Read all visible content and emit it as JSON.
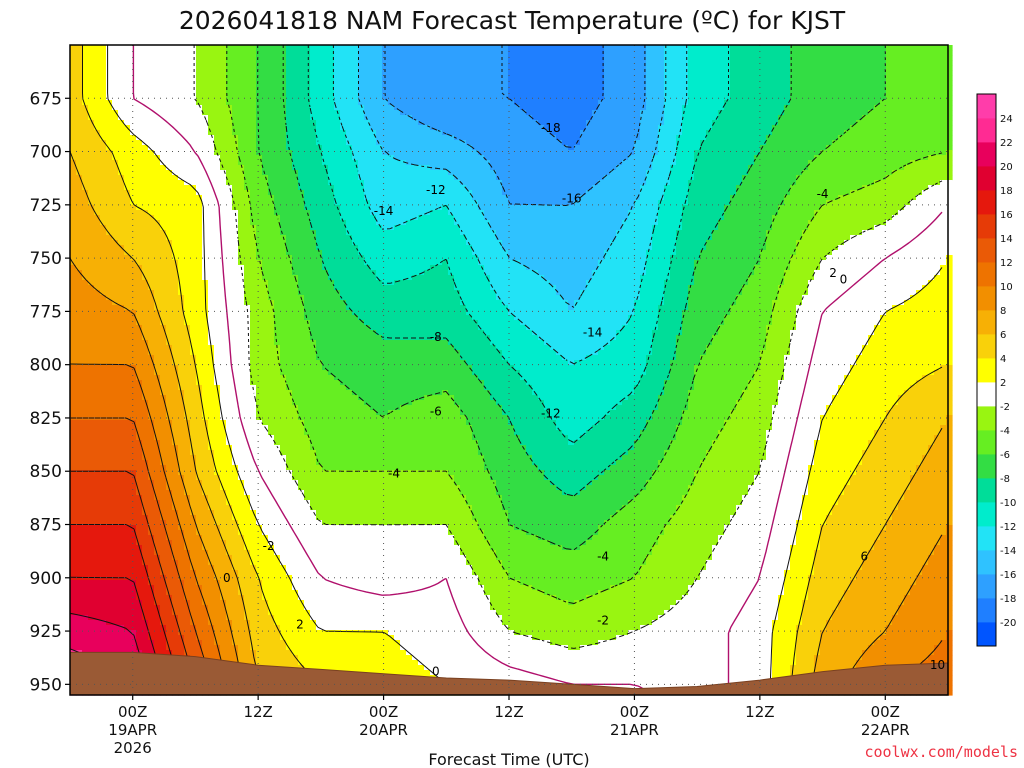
{
  "chart_data": {
    "type": "heatmap",
    "title": "2026041818 NAM Forecast Temperature (ºC) for KJST",
    "xlabel": "Forecast Time (UTC)",
    "ylabel": "",
    "ylim": [
      955,
      650
    ],
    "y_ticks": [
      675,
      700,
      725,
      750,
      775,
      800,
      825,
      850,
      875,
      900,
      925,
      950
    ],
    "x_ticks": [
      {
        "lines": [
          "00Z",
          "19APR",
          "2026"
        ],
        "hour": 6
      },
      {
        "lines": [
          "12Z"
        ],
        "hour": 18
      },
      {
        "lines": [
          "00Z",
          "20APR"
        ],
        "hour": 30
      },
      {
        "lines": [
          "12Z"
        ],
        "hour": 42
      },
      {
        "lines": [
          "00Z",
          "21APR"
        ],
        "hour": 54
      },
      {
        "lines": [
          "12Z"
        ],
        "hour": 66
      },
      {
        "lines": [
          "00Z",
          "22APR"
        ],
        "hour": 78
      }
    ],
    "xlim_hours": [
      0,
      84
    ],
    "colorbar": {
      "levels": [
        -20,
        -18,
        -16,
        -14,
        -12,
        -10,
        -8,
        -6,
        -4,
        -2,
        2,
        4,
        6,
        8,
        10,
        12,
        14,
        16,
        18,
        20,
        22,
        24
      ],
      "colors": [
        "#0055ff",
        "#1f7fff",
        "#2ea0ff",
        "#2fc2ff",
        "#22e3f6",
        "#00eccc",
        "#00dd99",
        "#33dd44",
        "#66ee22",
        "#99f511",
        "#ffffff",
        "#ffff00",
        "#f9d10a",
        "#f7b005",
        "#f28f00",
        "#ee7300",
        "#ea5a06",
        "#e63b07",
        "#e5180d",
        "#e00030",
        "#e8005c",
        "#ff2b93",
        "#ff3daa"
      ]
    },
    "series": [
      {
        "hour": 0,
        "t": [
          5,
          6,
          7,
          8,
          9,
          10,
          12,
          14,
          16,
          18,
          21,
          24
        ]
      },
      {
        "hour": 6,
        "t": [
          0,
          3,
          4,
          6,
          8,
          10,
          12,
          14,
          16,
          18,
          20,
          22
        ]
      },
      {
        "hour": 12,
        "t": [
          -2,
          0,
          3,
          3,
          3,
          4,
          5,
          6,
          8,
          10,
          12,
          14
        ]
      },
      {
        "hour": 18,
        "t": [
          -6,
          -6,
          -5,
          -4,
          -3,
          -3,
          -2,
          0,
          2,
          4,
          5,
          6
        ]
      },
      {
        "hour": 24,
        "t": [
          -11,
          -10,
          -9,
          -8,
          -7,
          -6,
          -5,
          -4,
          -2,
          0,
          2,
          4
        ]
      },
      {
        "hour": 30,
        "t": [
          -16,
          -14,
          -13,
          -11,
          -9,
          -7,
          -6,
          -4,
          -2,
          -1,
          2,
          3
        ]
      },
      {
        "hour": 36,
        "t": [
          -18,
          -15,
          -12,
          -10,
          -9,
          -7,
          -5,
          -4,
          -2,
          0,
          1,
          2
        ]
      },
      {
        "hour": 42,
        "t": [
          -18,
          -17,
          -16,
          -14,
          -12,
          -10,
          -8,
          -7,
          -6,
          -4,
          -2,
          1
        ]
      },
      {
        "hour": 48,
        "t": [
          -19,
          -18,
          -16,
          -15,
          -14,
          -12,
          -11,
          -9,
          -7,
          -5,
          -3,
          0
        ]
      },
      {
        "hour": 54,
        "t": [
          -17,
          -16,
          -14,
          -13,
          -12,
          -11,
          -9,
          -7,
          -5,
          -4,
          -2,
          0
        ]
      },
      {
        "hour": 60,
        "t": [
          -11,
          -10,
          -9,
          -8,
          -7,
          -6,
          -5,
          -4,
          -3,
          -2,
          -1,
          -1
        ]
      },
      {
        "hour": 66,
        "t": [
          -9,
          -8,
          -7,
          -6,
          -5,
          -4,
          -3,
          -2,
          -1,
          0,
          1,
          1
        ]
      },
      {
        "hour": 72,
        "t": [
          -7,
          -6,
          -4,
          -2,
          0,
          1,
          2,
          3,
          4,
          5,
          6,
          7
        ]
      },
      {
        "hour": 78,
        "t": [
          -6,
          -5,
          -3,
          0,
          2,
          3,
          4,
          5,
          6,
          7,
          8,
          10
        ]
      },
      {
        "hour": 84,
        "t": [
          -5,
          -4,
          0,
          2,
          3,
          4,
          6,
          7,
          8,
          9,
          10,
          11
        ]
      }
    ],
    "contour_labels": [
      {
        "text": "-18",
        "hour": 46,
        "p": 689
      },
      {
        "text": "-16",
        "hour": 48,
        "p": 722
      },
      {
        "text": "-14",
        "hour": 30,
        "p": 728
      },
      {
        "text": "-12",
        "hour": 35,
        "p": 718
      },
      {
        "text": "-14",
        "hour": 50,
        "p": 785
      },
      {
        "text": "-12",
        "hour": 46,
        "p": 823
      },
      {
        "text": "-8",
        "hour": 35,
        "p": 787
      },
      {
        "text": "-6",
        "hour": 35,
        "p": 822
      },
      {
        "text": "-4",
        "hour": 31,
        "p": 851
      },
      {
        "text": "-4",
        "hour": 51,
        "p": 890
      },
      {
        "text": "-4",
        "hour": 72,
        "p": 720
      },
      {
        "text": "-2",
        "hour": 19,
        "p": 885
      },
      {
        "text": "-2",
        "hour": 51,
        "p": 920
      },
      {
        "text": "2",
        "hour": 22,
        "p": 922
      },
      {
        "text": "2",
        "hour": 73,
        "p": 757
      },
      {
        "text": "0",
        "hour": 15,
        "p": 900
      },
      {
        "text": "0",
        "hour": 35,
        "p": 944
      },
      {
        "text": "0",
        "hour": 74,
        "p": 760
      },
      {
        "text": "6",
        "hour": 76,
        "p": 890
      },
      {
        "text": "10",
        "hour": 83,
        "p": 941
      }
    ],
    "ground_pressure": [
      935,
      935,
      937,
      941,
      943,
      945,
      947,
      948,
      950,
      952,
      951,
      948,
      944,
      941,
      940
    ],
    "grid": true,
    "legend_position": "right"
  },
  "credit": "coolwx.com/models"
}
